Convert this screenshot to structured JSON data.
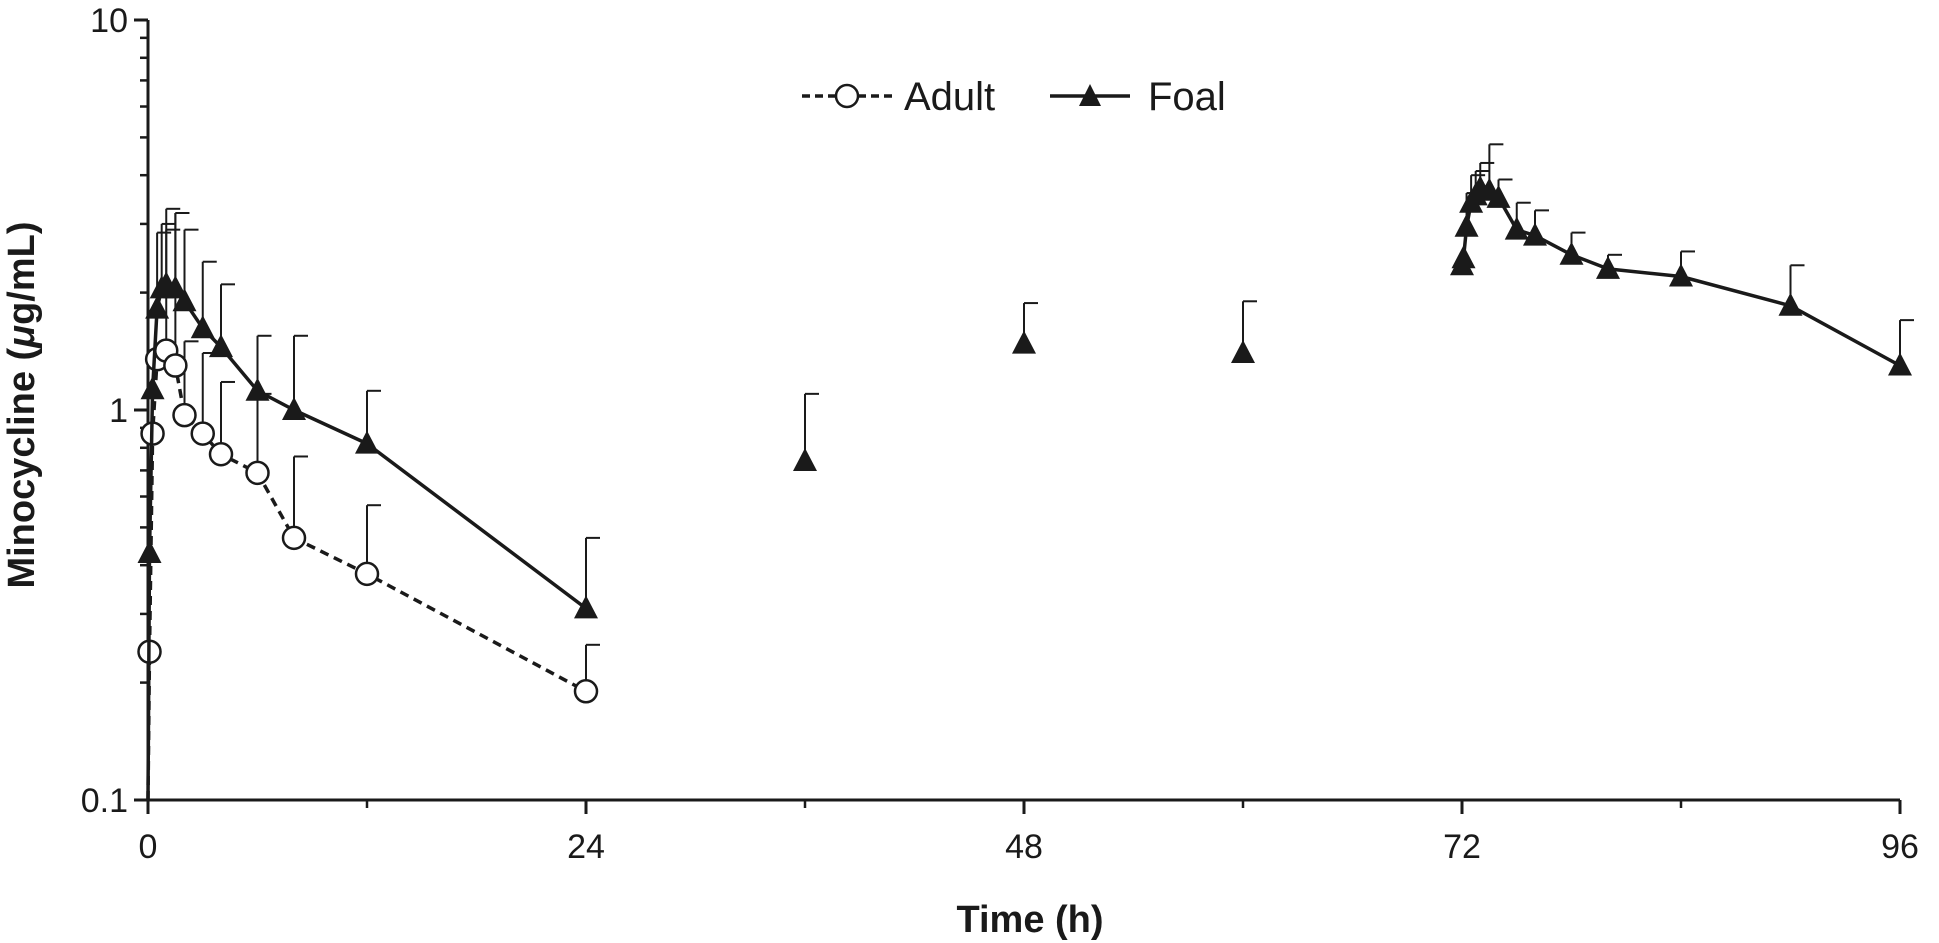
{
  "chart_data": {
    "type": "scatter",
    "title": "",
    "xlabel": "Time (h)",
    "ylabel_parts": [
      "Minocycline (",
      "μ",
      "g/mL)"
    ],
    "xlim": [
      0,
      96
    ],
    "ylim": [
      0.1,
      10
    ],
    "yscale": "log",
    "x_ticks": [
      0,
      24,
      48,
      72,
      96
    ],
    "x_tick_labels": [
      "0",
      "24",
      "48",
      "72",
      "96"
    ],
    "y_ticks": [
      0.1,
      1,
      10
    ],
    "y_tick_labels": [
      "0.1",
      "1",
      "10"
    ],
    "grid": false,
    "legend_position": "top-center",
    "series": [
      {
        "name": "Adult",
        "marker": "open-circle",
        "line": "dashed",
        "color": "#1a1a1a",
        "points": [
          {
            "x": 0,
            "y": 0.1,
            "err": null,
            "connected": true
          },
          {
            "x": 0.083,
            "y": 0.24,
            "err": null,
            "connected": true
          },
          {
            "x": 0.25,
            "y": 0.87,
            "err": null,
            "connected": true
          },
          {
            "x": 0.5,
            "y": 1.35,
            "err": null,
            "connected": true
          },
          {
            "x": 1,
            "y": 1.42,
            "err": 2.9,
            "connected": true
          },
          {
            "x": 1.5,
            "y": 1.3,
            "err": 3.2,
            "connected": true
          },
          {
            "x": 2,
            "y": 0.97,
            "err": 1.5,
            "connected": true
          },
          {
            "x": 3,
            "y": 0.87,
            "err": 1.4,
            "connected": true
          },
          {
            "x": 4,
            "y": 0.77,
            "err": 1.18,
            "connected": true
          },
          {
            "x": 6,
            "y": 0.69,
            "err": 1.1,
            "connected": true
          },
          {
            "x": 8,
            "y": 0.47,
            "err": 0.76,
            "connected": true
          },
          {
            "x": 12,
            "y": 0.38,
            "err": 0.57,
            "connected": true
          },
          {
            "x": 24,
            "y": 0.19,
            "err": 0.25,
            "connected": true
          }
        ]
      },
      {
        "name": "Foal",
        "marker": "filled-triangle",
        "line": "solid",
        "color": "#1a1a1a",
        "points": [
          {
            "x": 0,
            "y": 0.1,
            "err": null,
            "connected": true
          },
          {
            "x": 0.083,
            "y": 0.43,
            "err": null,
            "connected": true
          },
          {
            "x": 0.25,
            "y": 1.13,
            "err": null,
            "connected": true
          },
          {
            "x": 0.5,
            "y": 1.82,
            "err": 2.85,
            "connected": true
          },
          {
            "x": 0.75,
            "y": 2.05,
            "err": 3.0,
            "connected": true
          },
          {
            "x": 1,
            "y": 2.1,
            "err": 3.28,
            "connected": true
          },
          {
            "x": 1.5,
            "y": 2.05,
            "err": 3.2,
            "connected": true
          },
          {
            "x": 2,
            "y": 1.9,
            "err": 2.9,
            "connected": true
          },
          {
            "x": 3,
            "y": 1.62,
            "err": 2.4,
            "connected": true
          },
          {
            "x": 4,
            "y": 1.45,
            "err": 2.1,
            "connected": true
          },
          {
            "x": 6,
            "y": 1.12,
            "err": 1.55,
            "connected": true
          },
          {
            "x": 8,
            "y": 1.0,
            "err": 1.55,
            "connected": true
          },
          {
            "x": 12,
            "y": 0.82,
            "err": 1.12,
            "connected": true
          },
          {
            "x": 24,
            "y": 0.31,
            "err": 0.47,
            "connected": true
          },
          {
            "x": 36,
            "y": 0.74,
            "err": 1.1,
            "connected": false
          },
          {
            "x": 48,
            "y": 1.48,
            "err": 1.88,
            "connected": false
          },
          {
            "x": 60,
            "y": 1.4,
            "err": 1.9,
            "connected": false
          },
          {
            "x": 72,
            "y": 2.35,
            "err": null,
            "connected": true
          },
          {
            "x": 72.083,
            "y": 2.45,
            "err": null,
            "connected": true
          },
          {
            "x": 72.25,
            "y": 2.95,
            "err": 3.6,
            "connected": true
          },
          {
            "x": 72.5,
            "y": 3.4,
            "err": 4.0,
            "connected": true
          },
          {
            "x": 72.75,
            "y": 3.55,
            "err": 4.1,
            "connected": true
          },
          {
            "x": 73,
            "y": 3.7,
            "err": 4.3,
            "connected": true
          },
          {
            "x": 73.5,
            "y": 3.65,
            "err": 4.8,
            "connected": true
          },
          {
            "x": 74,
            "y": 3.5,
            "err": 3.9,
            "connected": true
          },
          {
            "x": 75,
            "y": 2.9,
            "err": 3.4,
            "connected": true
          },
          {
            "x": 76,
            "y": 2.8,
            "err": 3.25,
            "connected": true
          },
          {
            "x": 78,
            "y": 2.5,
            "err": 2.85,
            "connected": true
          },
          {
            "x": 80,
            "y": 2.3,
            "err": 2.5,
            "connected": true
          },
          {
            "x": 84,
            "y": 2.2,
            "err": 2.55,
            "connected": true
          },
          {
            "x": 90,
            "y": 1.85,
            "err": 2.35,
            "connected": true
          },
          {
            "x": 96,
            "y": 1.3,
            "err": 1.7,
            "connected": true
          }
        ]
      }
    ]
  }
}
